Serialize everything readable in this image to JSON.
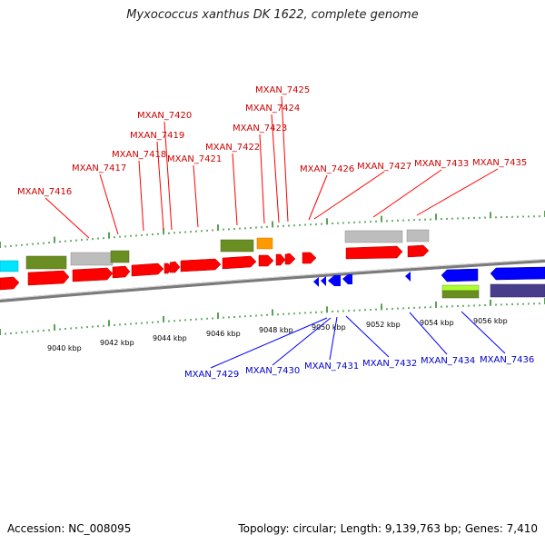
{
  "title": "Myxococcus xanthus DK 1622, complete genome",
  "footer": {
    "accession": "Accession: NC_008095",
    "summary": "Topology: circular; Length: 9,139,763 bp; Genes: 7,410"
  },
  "colors": {
    "forward_gene": "#ff0000",
    "reverse_gene": "#0000ff",
    "forward_label": "#cc0000",
    "reverse_label": "#0000cc",
    "tick": "#2d8a2d",
    "backbone": "#7a7a7a"
  },
  "axis": {
    "unit": "kbp",
    "ticks": [
      "9040 kbp",
      "9042 kbp",
      "9044 kbp",
      "9046 kbp",
      "9048 kbp",
      "9050 kbp",
      "9052 kbp",
      "9054 kbp",
      "9056 kbp"
    ]
  },
  "forward_labels": [
    "MXAN_7416",
    "MXAN_7417",
    "MXAN_7418",
    "MXAN_7419",
    "MXAN_7420",
    "MXAN_7421",
    "MXAN_7422",
    "MXAN_7423",
    "MXAN_7424",
    "MXAN_7425",
    "MXAN_7426",
    "MXAN_7427",
    "MXAN_7433",
    "MXAN_7435"
  ],
  "reverse_labels": [
    "MXAN_7429",
    "MXAN_7430",
    "MXAN_7431",
    "MXAN_7432",
    "MXAN_7434",
    "MXAN_7436"
  ]
}
